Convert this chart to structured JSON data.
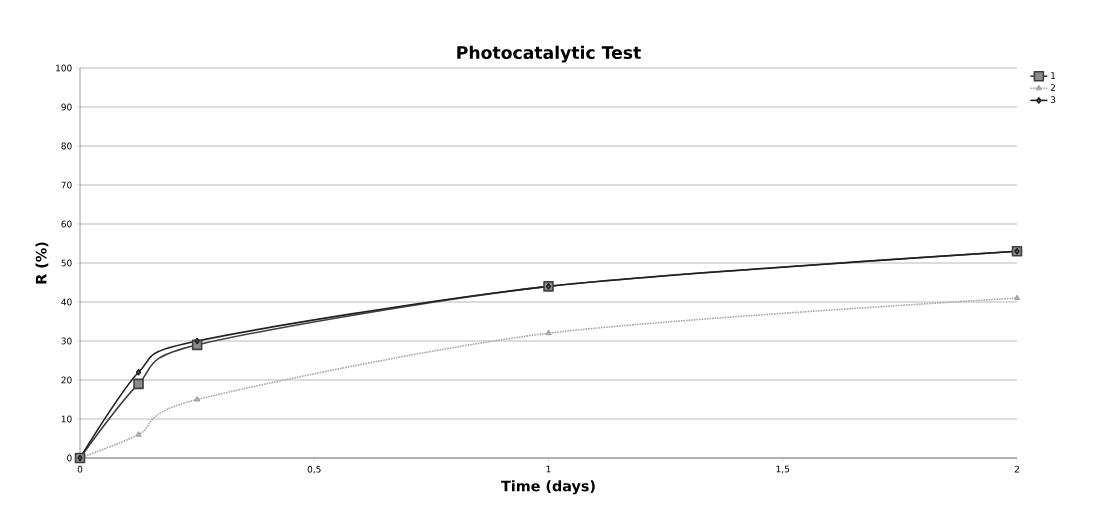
{
  "chart_data": {
    "type": "line",
    "title": "Photocatalytic Test",
    "xlabel": "Time (days)",
    "ylabel": "R (%)",
    "x": [
      0,
      0.125,
      0.25,
      1,
      2
    ],
    "series": [
      {
        "name": "1",
        "color": "#404040",
        "values": [
          0,
          19,
          29,
          44,
          53
        ],
        "marker": "square"
      },
      {
        "name": "2",
        "color": "#a6a6a6",
        "values": [
          0,
          6,
          15,
          32,
          41
        ],
        "marker": "triangle",
        "line_style": "dotted"
      },
      {
        "name": "3",
        "color": "#202020",
        "values": [
          0,
          22,
          30,
          44,
          53
        ],
        "marker": "diamond"
      }
    ],
    "xlim": [
      0,
      2
    ],
    "xticks": [
      0,
      {
        "value": 0.5,
        "label": "0,5"
      },
      1,
      {
        "value": 1.5,
        "label": "1,5"
      },
      2
    ],
    "ylim": [
      0,
      100
    ],
    "yticks": [
      0,
      10,
      20,
      30,
      40,
      50,
      60,
      70,
      80,
      90,
      100
    ],
    "grid": "y",
    "legend": "top right"
  }
}
